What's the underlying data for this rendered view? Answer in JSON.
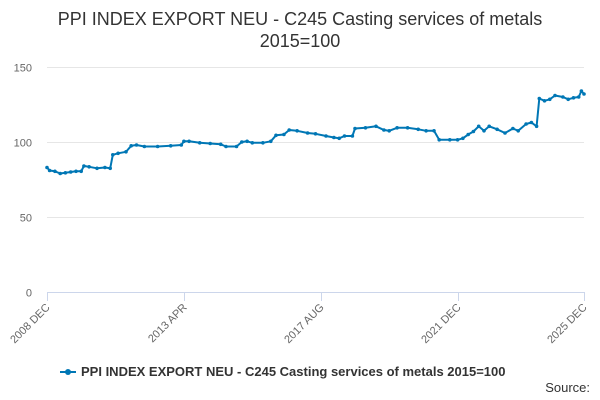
{
  "colors": {
    "series": "#0077b5",
    "grid": "#e6e6e6",
    "axis": "#ccd6eb",
    "text": "#666666"
  },
  "source_label": "Source:",
  "chart_data": {
    "type": "line",
    "title_line1": "PPI INDEX EXPORT NEU - C245 Casting services of metals",
    "title_line2": "2015=100",
    "xlabel": "",
    "ylabel": "",
    "ylim": [
      0,
      150
    ],
    "yticks": [
      0,
      50,
      100,
      150
    ],
    "xlim": [
      "2008-12",
      "2025-12"
    ],
    "xticks": [
      {
        "date": "2008-12",
        "label": "2008 DEC"
      },
      {
        "date": "2013-04",
        "label": "2013 APR"
      },
      {
        "date": "2017-08",
        "label": "2017 AUG"
      },
      {
        "date": "2021-12",
        "label": "2021 DEC"
      },
      {
        "date": "2025-12",
        "label": "2025 DEC"
      }
    ],
    "grid": true,
    "legend_position": "bottom",
    "series": [
      {
        "name": "PPI INDEX EXPORT NEU - C245 Casting services of metals 2015=100",
        "points": [
          [
            "2008-12",
            83
          ],
          [
            "2009-01",
            81
          ],
          [
            "2009-03",
            80.5
          ],
          [
            "2009-05",
            79
          ],
          [
            "2009-07",
            79.5
          ],
          [
            "2009-09",
            80
          ],
          [
            "2009-11",
            80.5
          ],
          [
            "2010-01",
            80.5
          ],
          [
            "2010-02",
            84
          ],
          [
            "2010-04",
            83.5
          ],
          [
            "2010-07",
            82.5
          ],
          [
            "2010-10",
            83
          ],
          [
            "2010-12",
            82.5
          ],
          [
            "2011-01",
            91.5
          ],
          [
            "2011-03",
            92.5
          ],
          [
            "2011-06",
            93.5
          ],
          [
            "2011-08",
            97.5
          ],
          [
            "2011-10",
            98
          ],
          [
            "2012-01",
            97
          ],
          [
            "2012-06",
            97
          ],
          [
            "2012-11",
            97.5
          ],
          [
            "2013-03",
            98
          ],
          [
            "2013-04",
            100.5
          ],
          [
            "2013-06",
            100.5
          ],
          [
            "2013-10",
            99.5
          ],
          [
            "2014-02",
            99
          ],
          [
            "2014-06",
            98.5
          ],
          [
            "2014-08",
            97
          ],
          [
            "2014-12",
            97
          ],
          [
            "2015-02",
            100
          ],
          [
            "2015-04",
            100.5
          ],
          [
            "2015-06",
            99.5
          ],
          [
            "2015-10",
            99.5
          ],
          [
            "2016-01",
            100.5
          ],
          [
            "2016-03",
            104.5
          ],
          [
            "2016-06",
            105
          ],
          [
            "2016-08",
            108
          ],
          [
            "2016-11",
            107.5
          ],
          [
            "2017-03",
            106
          ],
          [
            "2017-06",
            105.5
          ],
          [
            "2017-10",
            104
          ],
          [
            "2018-01",
            103
          ],
          [
            "2018-03",
            102.5
          ],
          [
            "2018-05",
            104
          ],
          [
            "2018-08",
            104
          ],
          [
            "2018-09",
            109
          ],
          [
            "2019-01",
            109.5
          ],
          [
            "2019-05",
            110.5
          ],
          [
            "2019-08",
            108
          ],
          [
            "2019-10",
            107.5
          ],
          [
            "2020-01",
            109.5
          ],
          [
            "2020-05",
            109.5
          ],
          [
            "2020-09",
            108.5
          ],
          [
            "2020-12",
            107.5
          ],
          [
            "2021-03",
            107.5
          ],
          [
            "2021-05",
            101.5
          ],
          [
            "2021-09",
            101.5
          ],
          [
            "2021-12",
            101.5
          ],
          [
            "2022-02",
            102.5
          ],
          [
            "2022-04",
            105
          ],
          [
            "2022-06",
            107
          ],
          [
            "2022-08",
            110.5
          ],
          [
            "2022-10",
            107.5
          ],
          [
            "2022-12",
            110.5
          ],
          [
            "2023-03",
            108.5
          ],
          [
            "2023-06",
            106
          ],
          [
            "2023-09",
            109
          ],
          [
            "2023-11",
            107.5
          ],
          [
            "2024-02",
            112
          ],
          [
            "2024-04",
            113
          ],
          [
            "2024-06",
            110.5
          ],
          [
            "2024-07",
            129
          ],
          [
            "2024-09",
            127.5
          ],
          [
            "2024-11",
            128.5
          ],
          [
            "2025-01",
            131
          ],
          [
            "2025-04",
            130
          ],
          [
            "2025-06",
            128.5
          ],
          [
            "2025-08",
            129.5
          ],
          [
            "2025-10",
            130
          ],
          [
            "2025-11",
            134
          ],
          [
            "2025-12",
            132
          ]
        ]
      }
    ]
  }
}
